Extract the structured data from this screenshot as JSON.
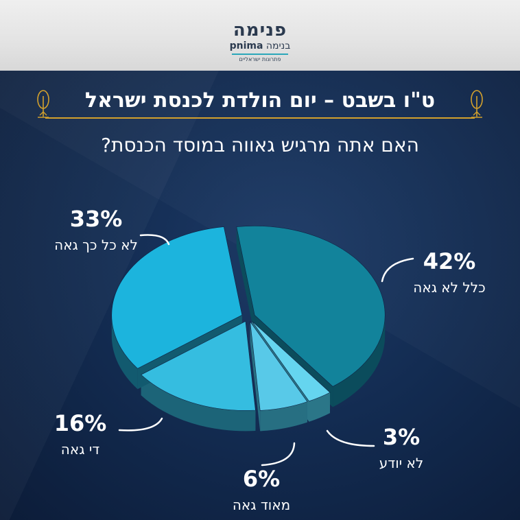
{
  "logo": {
    "hebrew": "פנימה",
    "latin": "pnima",
    "hebrew_secondary": "בנימה",
    "tagline": "פתרונות ישראליים"
  },
  "header": {
    "title": "ט\"ו בשבט – יום הולדת לכנסת ישראל",
    "accent_color": "#d4a12c"
  },
  "question": "האם אתה מרגיש גאווה במוסד הכנסת?",
  "chart_data": {
    "type": "pie",
    "title": "האם אתה מרגיש גאווה במוסד הכנסת?",
    "categories": [
      "כלל לא גאה",
      "לא יודע",
      "מאוד גאה",
      "די גאה",
      "לא כל כך גאה"
    ],
    "values": [
      42,
      3,
      6,
      16,
      33
    ],
    "labels": [
      {
        "pct": "42%",
        "name": "כלל לא גאה"
      },
      {
        "pct": "3%",
        "name": "לא יודע"
      },
      {
        "pct": "6%",
        "name": "מאוד גאה"
      },
      {
        "pct": "16%",
        "name": "די גאה"
      },
      {
        "pct": "33%",
        "name": "לא כל כך גאה"
      }
    ],
    "colors": [
      "#12839b",
      "#65d5ef",
      "#58c9e8",
      "#35bde0",
      "#1cb4dd"
    ],
    "side_colors": [
      "#0b4c5c",
      "#2b7688",
      "#276f82",
      "#1c6478",
      "#125a6f"
    ],
    "legend": "none",
    "grid": false,
    "style": "3d-exploded"
  }
}
